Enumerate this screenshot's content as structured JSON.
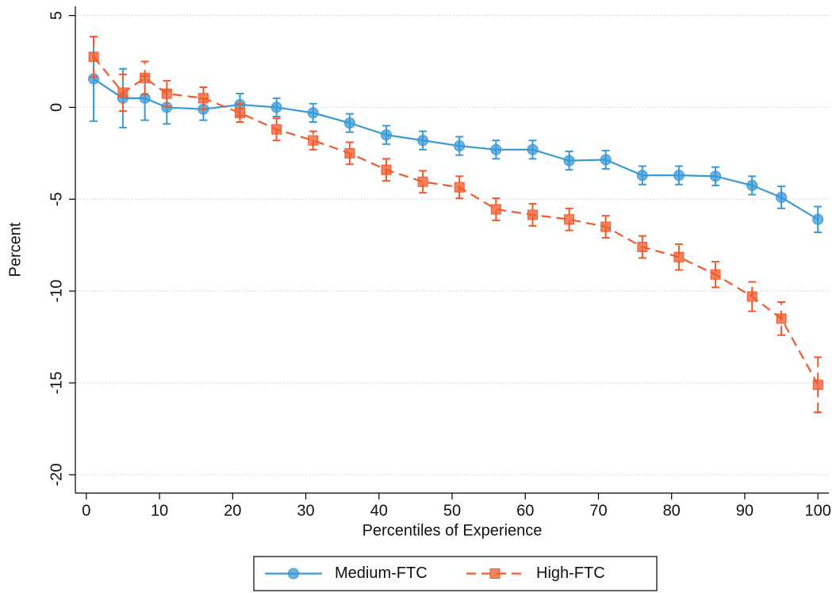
{
  "chart_data": {
    "type": "line",
    "x_label": "Percentiles of Experience",
    "y_label": "Percent",
    "x": [
      1,
      5,
      8,
      11,
      16,
      21,
      26,
      31,
      36,
      41,
      46,
      51,
      56,
      61,
      66,
      71,
      76,
      81,
      86,
      91,
      95,
      100
    ],
    "series": [
      {
        "name": "Medium-FTC",
        "color": "#3a9ad6",
        "dash": false,
        "marker": "circle",
        "values": [
          1.55,
          0.5,
          0.5,
          0,
          -0.1,
          0.15,
          0,
          -0.3,
          -0.85,
          -1.5,
          -1.8,
          -2.1,
          -2.3,
          -2.3,
          -2.9,
          -2.85,
          -3.7,
          -3.7,
          -3.75,
          -4.25,
          -4.9,
          -6.1
        ],
        "errors": [
          2.3,
          1.6,
          1.2,
          0.9,
          0.6,
          0.6,
          0.5,
          0.5,
          0.5,
          0.5,
          0.5,
          0.5,
          0.5,
          0.5,
          0.5,
          0.5,
          0.5,
          0.5,
          0.5,
          0.5,
          0.6,
          0.7
        ]
      },
      {
        "name": "High-FTC",
        "color": "#f1592a",
        "dash": true,
        "marker": "square",
        "values": [
          2.75,
          0.8,
          1.6,
          0.75,
          0.5,
          -0.3,
          -1.2,
          -1.8,
          -2.5,
          -3.4,
          -4.05,
          -4.35,
          -5.55,
          -5.85,
          -6.1,
          -6.5,
          -7.6,
          -8.15,
          -9.1,
          -10.3,
          -11.5,
          -15.1
        ],
        "errors": [
          1.1,
          1.0,
          0.9,
          0.7,
          0.6,
          0.5,
          0.6,
          0.5,
          0.6,
          0.6,
          0.6,
          0.6,
          0.6,
          0.6,
          0.6,
          0.6,
          0.6,
          0.7,
          0.7,
          0.8,
          0.9,
          1.5
        ]
      }
    ],
    "xlim": [
      -1.5,
      101.5
    ],
    "ylim": [
      -21,
      5.5
    ],
    "xticks": [
      0,
      10,
      20,
      30,
      40,
      50,
      60,
      70,
      80,
      90,
      100
    ],
    "yticks": [
      5,
      0,
      -5,
      -10,
      -15,
      -20
    ],
    "grid": true,
    "legend": "bottom"
  }
}
